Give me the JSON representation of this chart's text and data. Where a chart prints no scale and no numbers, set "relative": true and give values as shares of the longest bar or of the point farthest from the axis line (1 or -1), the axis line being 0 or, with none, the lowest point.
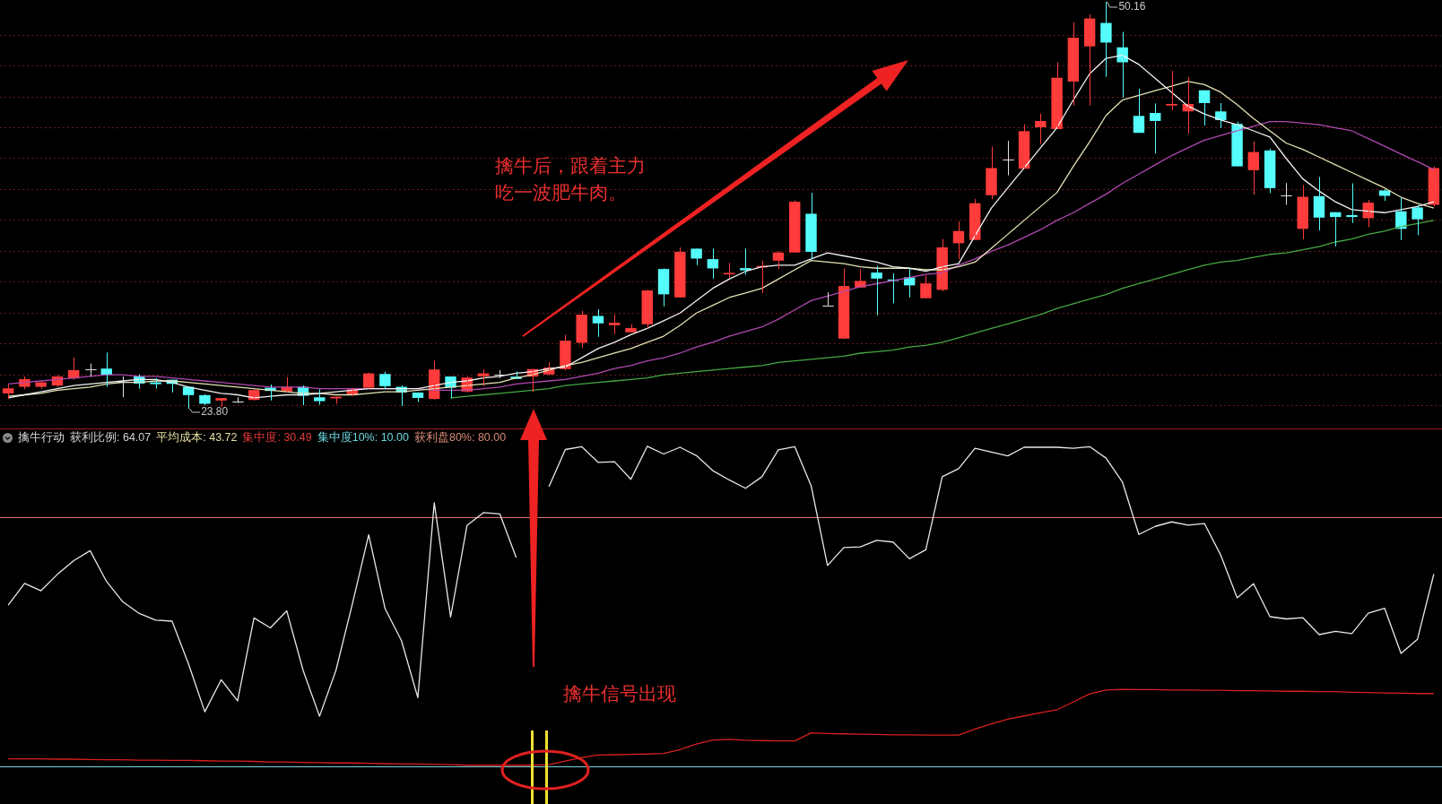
{
  "chart_data": [
    {
      "type": "candlestick",
      "categories": [
        null,
        null,
        null,
        null,
        null,
        null,
        null,
        null,
        null,
        null,
        null,
        null,
        null,
        null,
        null,
        null,
        null,
        null,
        null,
        null,
        null,
        null,
        null,
        null,
        null,
        null,
        null,
        null,
        null,
        null,
        null,
        null,
        null,
        null,
        null,
        null,
        null,
        null,
        null,
        null,
        null,
        null,
        null,
        null,
        null,
        null,
        null,
        null,
        null,
        null,
        null,
        null,
        null,
        null,
        null,
        null,
        null,
        null,
        null,
        null,
        null,
        null,
        null,
        null,
        null,
        null,
        null,
        null,
        null,
        null,
        null,
        null,
        null,
        null,
        null,
        null,
        null,
        null,
        null,
        null,
        null,
        null,
        null,
        null,
        null,
        null,
        null,
        null
      ],
      "ohlc": [
        [
          24.79,
          25.37,
          24.43,
          25.12
        ],
        [
          25.22,
          25.89,
          25.06,
          25.72
        ],
        [
          25.22,
          25.57,
          25.1,
          25.51
        ],
        [
          25.3,
          25.99,
          25.22,
          25.89
        ],
        [
          25.76,
          27.13,
          25.68,
          26.3
        ],
        [
          26.34,
          26.72,
          25.89,
          26.34
        ],
        [
          26.4,
          27.44,
          25.22,
          25.99
        ],
        [
          25.57,
          25.89,
          24.54,
          25.57
        ],
        [
          25.89,
          26.03,
          25.1,
          25.43
        ],
        [
          25.51,
          25.78,
          25.1,
          25.39
        ],
        [
          25.68,
          25.68,
          24.85,
          25.41
        ],
        [
          25.22,
          25.22,
          23.8,
          24.68
        ],
        [
          24.68,
          24.74,
          24.02,
          24.12
        ],
        [
          24.33,
          24.49,
          23.91,
          24.49
        ],
        [
          24.27,
          24.54,
          24.18,
          24.27
        ],
        [
          24.37,
          25.06,
          24.33,
          25.01
        ],
        [
          25.16,
          25.37,
          24.33,
          24.95
        ],
        [
          24.91,
          25.84,
          24.85,
          25.22
        ],
        [
          25.22,
          25.3,
          24.02,
          24.64
        ],
        [
          24.54,
          25.06,
          24.06,
          24.29
        ],
        [
          24.47,
          24.58,
          24.12,
          24.58
        ],
        [
          24.7,
          25.12,
          24.64,
          25.06
        ],
        [
          25.16,
          26.13,
          25.1,
          26.09
        ],
        [
          26.05,
          26.2,
          25.06,
          25.26
        ],
        [
          25.22,
          25.3,
          23.98,
          24.85
        ],
        [
          24.85,
          24.85,
          24.23,
          24.5
        ],
        [
          24.43,
          26.92,
          24.39,
          26.34
        ],
        [
          25.89,
          25.89,
          24.47,
          25.16
        ],
        [
          24.91,
          25.89,
          24.85,
          25.82
        ],
        [
          25.89,
          26.34,
          25.26,
          26.09
        ],
        [
          25.98,
          26.3,
          25.78,
          25.98
        ],
        [
          25.88,
          26.21,
          25.73,
          25.73
        ],
        [
          25.88,
          26.37,
          24.88,
          26.37
        ],
        [
          26.02,
          26.81,
          25.98,
          26.46
        ],
        [
          26.37,
          28.59,
          26.27,
          28.21
        ],
        [
          28.07,
          30.14,
          27.72,
          29.89
        ],
        [
          29.81,
          30.24,
          28.46,
          29.33
        ],
        [
          29.21,
          29.91,
          28.63,
          29.37
        ],
        [
          28.75,
          29.27,
          28.75,
          29.02
        ],
        [
          29.27,
          31.5,
          28.98,
          31.46
        ],
        [
          32.85,
          32.89,
          30.43,
          31.21
        ],
        [
          31.01,
          34.25,
          31.01,
          33.96
        ],
        [
          34.17,
          34.17,
          33.1,
          33.53
        ],
        [
          33.49,
          34.17,
          32.23,
          32.89
        ],
        [
          32.5,
          33.24,
          32.27,
          32.6
        ],
        [
          32.91,
          34.17,
          32.47,
          32.76
        ],
        [
          32.95,
          33.39,
          31.3,
          33.05
        ],
        [
          33.39,
          34.01,
          32.85,
          33.92
        ],
        [
          33.92,
          37.3,
          33.92,
          37.21
        ],
        [
          36.43,
          37.79,
          33.47,
          33.96
        ],
        [
          30.49,
          31.34,
          30.49,
          30.49
        ],
        [
          28.34,
          32.89,
          28.34,
          31.75
        ],
        [
          31.65,
          32.85,
          31.65,
          32.08
        ],
        [
          32.62,
          33.05,
          29.85,
          32.23
        ],
        [
          32.17,
          32.56,
          30.63,
          32.08
        ],
        [
          32.31,
          32.91,
          31.01,
          31.79
        ],
        [
          30.96,
          32.43,
          30.96,
          31.92
        ],
        [
          31.5,
          34.79,
          31.4,
          34.25
        ],
        [
          34.52,
          35.93,
          33.48,
          35.31
        ],
        [
          34.73,
          37.38,
          34.73,
          37.11
        ],
        [
          37.63,
          40.78,
          37.38,
          39.39
        ],
        [
          39.97,
          41.15,
          38.92,
          39.97
        ],
        [
          39.35,
          42.23,
          39.35,
          41.78
        ],
        [
          42.03,
          42.92,
          40.95,
          42.44
        ],
        [
          41.92,
          46.24,
          41.92,
          45.24
        ],
        [
          44.99,
          48.83,
          43.44,
          47.83
        ],
        [
          47.27,
          49.35,
          43.44,
          49.08
        ],
        [
          48.79,
          50.16,
          45.3,
          47.52
        ],
        [
          47.21,
          48.21,
          43.95,
          46.24
        ],
        [
          42.77,
          44.54,
          41.67,
          41.67
        ],
        [
          42.96,
          43.58,
          40.33,
          42.44
        ],
        [
          43.44,
          45.68,
          43.13,
          43.54
        ],
        [
          43.06,
          45.3,
          41.61,
          43.54
        ],
        [
          44.43,
          44.43,
          42.15,
          43.6
        ],
        [
          43.06,
          43.6,
          41.98,
          42.5
        ],
        [
          42.25,
          42.4,
          39.5,
          39.5
        ],
        [
          39.25,
          41.11,
          37.67,
          40.43
        ],
        [
          40.53,
          40.64,
          37.77,
          38.09
        ],
        [
          37.63,
          38.42,
          37.01,
          37.63
        ],
        [
          35.45,
          38.29,
          34.77,
          37.53
        ],
        [
          37.57,
          38.81,
          35.35,
          36.18
        ],
        [
          36.53,
          36.53,
          34.31,
          36.22
        ],
        [
          36.34,
          38.4,
          35.83,
          36.22
        ],
        [
          36.14,
          37.32,
          35.56,
          37.15
        ],
        [
          37.94,
          38.04,
          37.26,
          37.59
        ],
        [
          36.59,
          37.46,
          34.73,
          35.45
        ],
        [
          36.84,
          37.01,
          35.04,
          36.07
        ],
        [
          37.01,
          39.5,
          36.91,
          39.39
        ]
      ],
      "colors": [
        "#ff3b3b",
        "#ff3b3b",
        "#ff3b3b",
        "#ff3b3b",
        "#ff3b3b",
        "#e0e0e0",
        "#54fcfc",
        "#e0e0e0",
        "#54fcfc",
        "#54fcfc",
        "#54fcfc",
        "#54fcfc",
        "#54fcfc",
        "#ff3b3b",
        "#e0e0e0",
        "#ff3b3b",
        "#54fcfc",
        "#ff3b3b",
        "#54fcfc",
        "#54fcfc",
        "#ff3b3b",
        "#ff3b3b",
        "#ff3b3b",
        "#54fcfc",
        "#54fcfc",
        "#54fcfc",
        "#ff3b3b",
        "#54fcfc",
        "#ff3b3b",
        "#ff3b3b",
        "#e0e0e0",
        "#54fcfc",
        "#ff3b3b",
        "#ff3b3b",
        "#ff3b3b",
        "#ff3b3b",
        "#54fcfc",
        "#ff3b3b",
        "#ff3b3b",
        "#ff3b3b",
        "#54fcfc",
        "#ff3b3b",
        "#54fcfc",
        "#54fcfc",
        "#ff3b3b",
        "#54fcfc",
        "#ff3b3b",
        "#ff3b3b",
        "#ff3b3b",
        "#54fcfc",
        "#e0e0e0",
        "#ff3b3b",
        "#ff3b3b",
        "#54fcfc",
        "#54fcfc",
        "#54fcfc",
        "#ff3b3b",
        "#ff3b3b",
        "#ff3b3b",
        "#ff3b3b",
        "#ff3b3b",
        "#e0e0e0",
        "#ff3b3b",
        "#ff3b3b",
        "#ff3b3b",
        "#ff3b3b",
        "#ff3b3b",
        "#54fcfc",
        "#54fcfc",
        "#54fcfc",
        "#54fcfc",
        "#ff3b3b",
        "#ff3b3b",
        "#54fcfc",
        "#54fcfc",
        "#54fcfc",
        "#ff3b3b",
        "#54fcfc",
        "#e0e0e0",
        "#ff3b3b",
        "#54fcfc",
        "#54fcfc",
        "#54fcfc",
        "#ff3b3b",
        "#54fcfc",
        "#54fcfc",
        "#54fcfc",
        "#ff3b3b"
      ],
      "series": [
        {
          "type": "line",
          "color": "#f2f2f2",
          "values": [
            24.5,
            24.7,
            24.9,
            25.1,
            25.3,
            25.4,
            25.5,
            25.6,
            25.7,
            25.7,
            25.5,
            25.2,
            25.0,
            24.8,
            24.7,
            24.5,
            24.6,
            24.7,
            24.7,
            24.8,
            24.9,
            25.0,
            25.1,
            25.1,
            25.1,
            25.1,
            25.3,
            25.5,
            25.6,
            25.8,
            25.9,
            26.1,
            26.2,
            26.4,
            26.5,
            27.1,
            27.7,
            28.1,
            28.6,
            29.0,
            29.5,
            30.0,
            30.8,
            31.6,
            32.2,
            32.7,
            33.0,
            33.1,
            33.1,
            33.5,
            33.9,
            33.7,
            33.5,
            33.3,
            33.0,
            32.9,
            32.7,
            33.0,
            33.2,
            35.0,
            36.8,
            38.1,
            39.4,
            40.7,
            42.0,
            43.8,
            45.5,
            46.5,
            46.7,
            46.1,
            45.2,
            44.3,
            43.4,
            42.9,
            42.5,
            42.2,
            41.8,
            41.4,
            40.0,
            38.7,
            37.9,
            37.2,
            36.7,
            36.6,
            36.5,
            36.7,
            36.9,
            37.2
          ]
        },
        {
          "type": "line",
          "color": "#e6e2b4",
          "values": [
            24.6,
            24.7,
            24.8,
            25.0,
            25.1,
            25.2,
            25.4,
            25.5,
            25.5,
            25.6,
            25.6,
            25.5,
            25.4,
            25.3,
            25.2,
            25.1,
            25.0,
            24.9,
            24.8,
            24.8,
            24.7,
            24.7,
            24.8,
            24.9,
            24.9,
            25.0,
            25.1,
            25.2,
            25.3,
            25.4,
            25.5,
            25.8,
            26.0,
            26.3,
            26.6,
            26.8,
            27.1,
            27.4,
            27.7,
            28.1,
            28.5,
            29.2,
            30.0,
            30.5,
            31.0,
            31.3,
            31.6,
            32.2,
            32.8,
            33.4,
            33.3,
            33.2,
            33.0,
            32.9,
            32.9,
            32.9,
            32.8,
            32.8,
            33.0,
            33.3,
            34.2,
            35.1,
            36.0,
            36.9,
            37.8,
            39.5,
            41.1,
            42.8,
            43.8,
            44.1,
            44.4,
            44.7,
            45.0,
            44.8,
            44.3,
            43.5,
            42.6,
            41.8,
            41.0,
            40.6,
            40.1,
            39.6,
            39.1,
            38.6,
            38.1,
            37.5,
            37.1,
            36.8
          ]
        },
        {
          "type": "line",
          "color": "#b048b0",
          "values": [
            25.4,
            25.5,
            25.6,
            25.7,
            25.8,
            25.9,
            26.0,
            26.0,
            25.9,
            25.9,
            25.8,
            25.7,
            25.6,
            25.5,
            25.4,
            25.3,
            25.2,
            25.2,
            25.2,
            25.1,
            25.1,
            25.1,
            25.1,
            25.1,
            25.1,
            25.1,
            25.0,
            25.0,
            25.0,
            25.1,
            25.2,
            25.4,
            25.5,
            25.6,
            25.7,
            25.9,
            26.1,
            26.4,
            26.6,
            26.9,
            27.1,
            27.4,
            27.8,
            28.1,
            28.5,
            28.8,
            29.1,
            29.6,
            30.2,
            30.8,
            31.1,
            31.4,
            31.7,
            31.9,
            32.1,
            32.3,
            32.5,
            32.6,
            33.1,
            33.5,
            34.0,
            34.4,
            34.9,
            35.4,
            36.0,
            36.5,
            37.1,
            37.7,
            38.4,
            39.0,
            39.6,
            40.2,
            40.7,
            41.2,
            41.5,
            41.8,
            42.1,
            42.4,
            42.4,
            42.3,
            42.2,
            42.0,
            41.8,
            41.3,
            40.8,
            40.3,
            39.8,
            39.3
          ]
        },
        {
          "type": "line",
          "color": "#44a844",
          "values": [
            null,
            null,
            null,
            null,
            null,
            null,
            null,
            null,
            null,
            null,
            null,
            null,
            null,
            null,
            null,
            null,
            null,
            null,
            null,
            null,
            null,
            null,
            null,
            null,
            null,
            null,
            null,
            24.5,
            24.6,
            24.7,
            24.8,
            24.9,
            25.0,
            25.1,
            25.3,
            25.4,
            25.5,
            25.6,
            25.7,
            25.8,
            26.0,
            26.1,
            26.2,
            26.3,
            26.4,
            26.5,
            26.6,
            26.8,
            26.9,
            27.0,
            27.1,
            27.2,
            27.4,
            27.5,
            27.6,
            27.8,
            27.9,
            28.1,
            28.4,
            28.7,
            29.0,
            29.3,
            29.6,
            29.9,
            30.3,
            30.6,
            30.9,
            31.2,
            31.6,
            31.9,
            32.2,
            32.5,
            32.8,
            33.1,
            33.3,
            33.4,
            33.6,
            33.8,
            33.9,
            34.1,
            34.3,
            34.6,
            34.8,
            35.1,
            35.3,
            35.6,
            35.8,
            36.0
          ]
        }
      ],
      "yticks": [
        {
          "value": 24,
          "label": null
        },
        {
          "value": 26,
          "label": null
        },
        {
          "value": 28,
          "label": null
        },
        {
          "value": 30,
          "label": null
        },
        {
          "value": 32,
          "label": null
        },
        {
          "value": 34,
          "label": null
        },
        {
          "value": 36,
          "label": null
        },
        {
          "value": 38,
          "label": null
        },
        {
          "value": 40,
          "label": null
        },
        {
          "value": 42,
          "label": null
        },
        {
          "value": 44,
          "label": null
        },
        {
          "value": 46,
          "label": null
        },
        {
          "value": 48,
          "label": null
        }
      ],
      "grid": "y",
      "tick_labels": false,
      "annotations": [
        "50.16",
        "23.80",
        "擒牛后，跟着主力吃一波肥牛肉。"
      ]
    },
    {
      "type": "line",
      "title": "擒牛行动",
      "categories": [
        null,
        null,
        null,
        null,
        null,
        null,
        null,
        null,
        null,
        null,
        null,
        null,
        null,
        null,
        null,
        null,
        null,
        null,
        null,
        null,
        null,
        null,
        null,
        null,
        null,
        null,
        null,
        null,
        null,
        null,
        null,
        null,
        null,
        null,
        null,
        null,
        null,
        null,
        null,
        null,
        null,
        null,
        null,
        null,
        null,
        null,
        null,
        null,
        null,
        null,
        null,
        null,
        null,
        null,
        null,
        null,
        null,
        null,
        null,
        null,
        null,
        null,
        null,
        null,
        null,
        null,
        null,
        null,
        null,
        null,
        null,
        null,
        null,
        null,
        null,
        null,
        null,
        null,
        null,
        null,
        null,
        null,
        null,
        null,
        null,
        null,
        null,
        null
      ],
      "series": [
        {
          "color": "#e8e8e8",
          "values": [
            0.504,
            0.572,
            0.549,
            0.6,
            0.643,
            0.674,
            0.578,
            0.514,
            0.478,
            0.457,
            0.454,
            0.321,
            0.171,
            0.271,
            0.205,
            0.464,
            0.433,
            0.486,
            0.3,
            0.157,
            0.3,
            0.507,
            0.724,
            0.493,
            0.393,
            0.215,
            0.824,
            0.467,
            0.753,
            0.793,
            0.789,
            0.653,
            null,
            0.874,
            0.99,
            0.999,
            0.95,
            0.952,
            0.897,
            1,
            0.976,
            0.997,
            0.971,
            0.924,
            0.895,
            0.869,
            0.905,
            0.989,
            0.999,
            0.877,
            0.628,
            0.684,
            0.686,
            0.706,
            0.701,
            0.649,
            0.677,
            0.905,
            0.93,
            0.994,
            0.982,
            0.97,
            0.997,
            0.997,
            0.997,
            0.994,
            0.999,
            0.963,
            0.888,
            0.725,
            0.75,
            0.764,
            0.754,
            0.759,
            0.66,
            0.527,
            0.571,
            0.468,
            0.461,
            0.465,
            0.412,
            0.422,
            0.415,
            0.479,
            0.494,
            0.353,
            0.397,
            0.601
          ]
        },
        {
          "color": "#d82020",
          "values": [
            0.024,
            0.024,
            0.024,
            0.023,
            0.023,
            0.022,
            0.021,
            0.021,
            0.02,
            0.02,
            0.019,
            0.019,
            0.018,
            0.017,
            0.017,
            0.016,
            0.014,
            0.014,
            0.013,
            0.012,
            0.011,
            0.011,
            0.01,
            0.009,
            0.008,
            0.008,
            0.007,
            0.006,
            0.004,
            0.004,
            0.004,
            0.004,
            0.004,
            0.006,
            0.017,
            0.028,
            0.036,
            0.037,
            0.038,
            0.039,
            0.041,
            0.053,
            0.07,
            0.083,
            0.085,
            0.082,
            0.081,
            0.08,
            0.08,
            0.105,
            0.103,
            0.102,
            0.101,
            0.1,
            0.099,
            0.099,
            0.098,
            0.098,
            0.098,
            0.117,
            0.133,
            0.148,
            0.158,
            0.168,
            0.177,
            0.202,
            0.227,
            0.239,
            0.241,
            0.24,
            0.24,
            0.239,
            0.239,
            0.238,
            0.238,
            0.237,
            0.237,
            0.236,
            0.235,
            0.235,
            0.234,
            0.234,
            0.232,
            0.231,
            0.23,
            0.229,
            0.228,
            0.228
          ]
        }
      ],
      "relative": true,
      "ref_lines": [
        {
          "axis": "y",
          "value": 0.779,
          "color": "#d87070"
        },
        {
          "axis": "y",
          "value": 0,
          "color": "#7ad4e0"
        }
      ],
      "tick_labels": false,
      "annotations": [
        "获利比例: 64.07",
        "平均成本: 43.72",
        "集中度: 30.49",
        "集中度10%: 10.00",
        "获利盘80%: 80.00",
        "擒牛信号出现"
      ]
    }
  ]
}
